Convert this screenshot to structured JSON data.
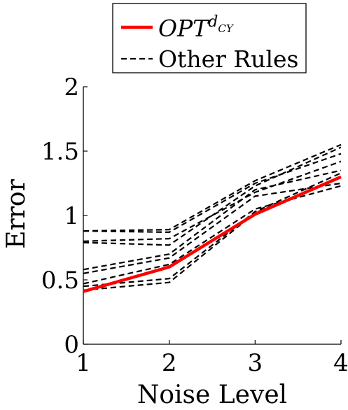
{
  "chart_data": {
    "type": "line",
    "x": [
      1,
      2,
      3,
      4
    ],
    "xlabel": "Noise Level",
    "ylabel": "Error",
    "xlim": [
      1,
      4
    ],
    "ylim": [
      0,
      2
    ],
    "xticks": [
      1,
      2,
      3,
      4
    ],
    "yticks": [
      0,
      0.5,
      1,
      1.5,
      2
    ],
    "xtick_labels": [
      "1",
      "2",
      "3",
      "4"
    ],
    "ytick_labels": [
      "0",
      "0.5",
      "1",
      "1.5",
      "2"
    ],
    "legend": {
      "placement": "top-center",
      "entries": [
        {
          "label_main": "OPT",
          "label_sup": "d",
          "label_sub": "CY",
          "color": "#ff0000",
          "style": "solid"
        },
        {
          "label": "Other Rules",
          "color": "#000000",
          "style": "dashed"
        }
      ]
    },
    "series": [
      {
        "name": "OPT",
        "color": "#ff0000",
        "style": "solid",
        "values": [
          0.41,
          0.6,
          1.01,
          1.3
        ]
      },
      {
        "group": "Other Rules",
        "color": "#000000",
        "style": "dashed",
        "values": [
          0.88,
          0.89,
          1.27,
          1.55
        ]
      },
      {
        "group": "Other Rules",
        "color": "#000000",
        "style": "dashed",
        "values": [
          0.88,
          0.87,
          1.25,
          1.48
        ]
      },
      {
        "group": "Other Rules",
        "color": "#000000",
        "style": "dashed",
        "values": [
          0.8,
          0.82,
          1.18,
          1.42
        ]
      },
      {
        "group": "Other Rules",
        "color": "#000000",
        "style": "dashed",
        "values": [
          0.79,
          0.77,
          1.23,
          1.53
        ]
      },
      {
        "group": "Other Rules",
        "color": "#000000",
        "style": "dashed",
        "values": [
          0.58,
          0.7,
          1.2,
          1.35
        ]
      },
      {
        "group": "Other Rules",
        "color": "#000000",
        "style": "dashed",
        "values": [
          0.55,
          0.67,
          1.15,
          1.25
        ]
      },
      {
        "group": "Other Rules",
        "color": "#000000",
        "style": "dashed",
        "values": [
          0.47,
          0.62,
          1.05,
          1.23
        ]
      },
      {
        "group": "Other Rules",
        "color": "#000000",
        "style": "dashed",
        "values": [
          0.45,
          0.51,
          1.03,
          1.33
        ]
      },
      {
        "group": "Other Rules",
        "color": "#000000",
        "style": "dashed",
        "values": [
          0.42,
          0.48,
          1.02,
          1.3
        ]
      }
    ]
  }
}
